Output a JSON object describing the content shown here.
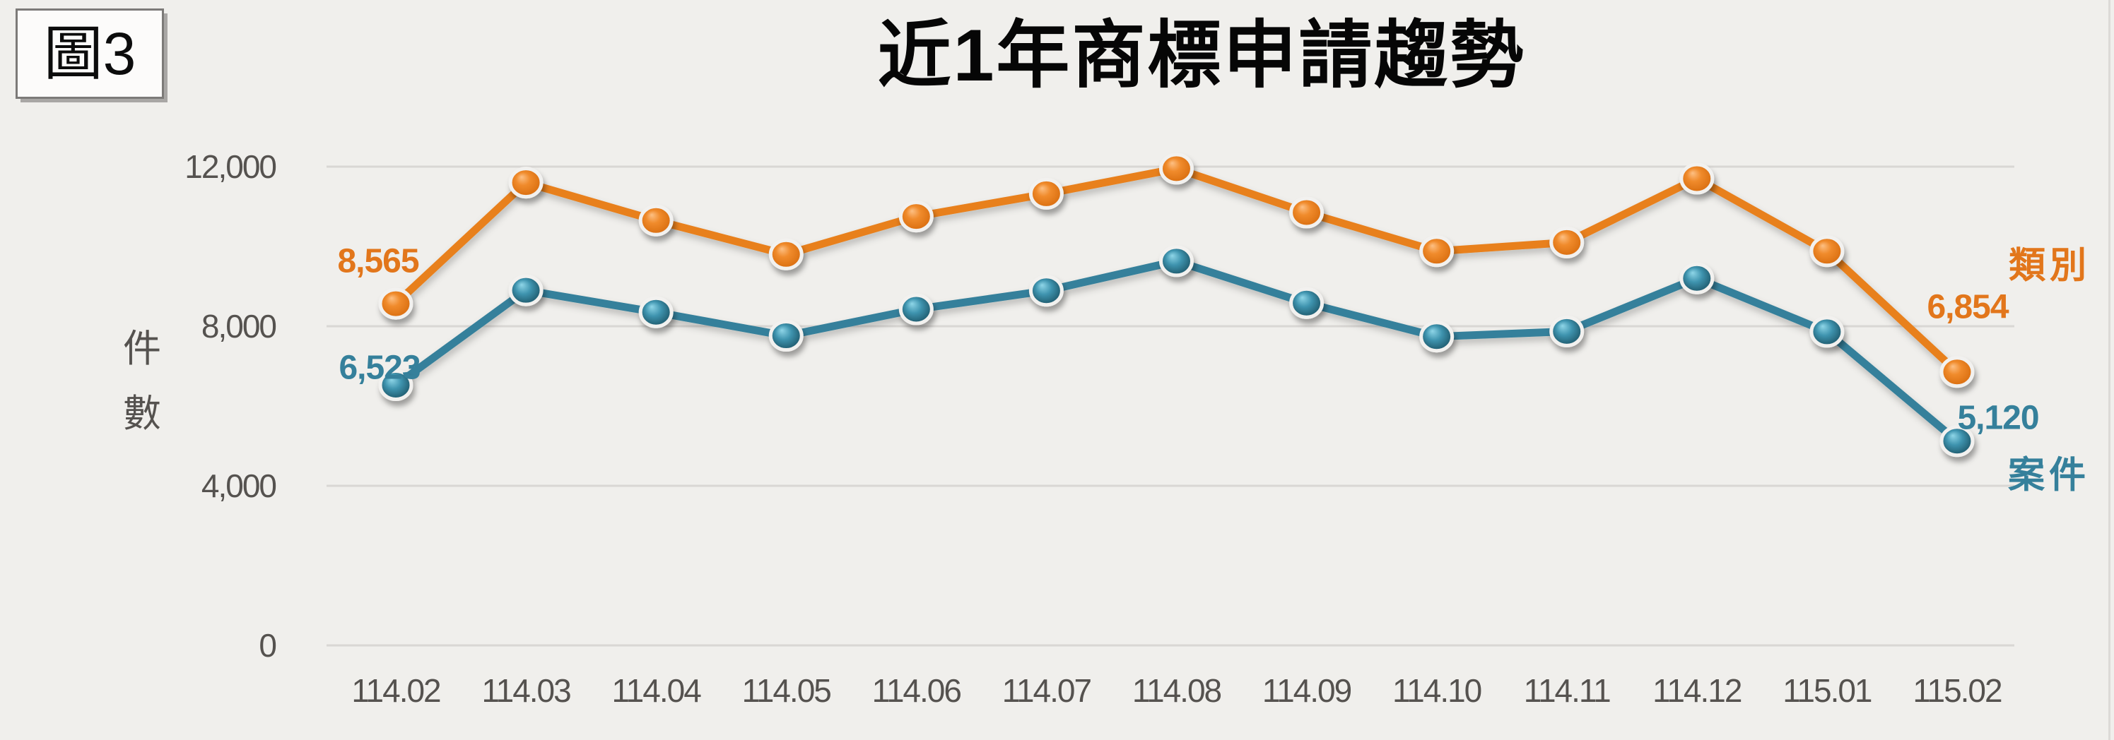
{
  "figure_label": "圖3",
  "title": "近1年商標申請趨勢",
  "chart_data": {
    "type": "line",
    "title": "近1年商標申請趨勢",
    "y_axis_title": "件數",
    "categories": [
      "114.02",
      "114.03",
      "114.04",
      "114.05",
      "114.06",
      "114.07",
      "114.08",
      "114.09",
      "114.10",
      "114.11",
      "114.12",
      "115.01",
      "115.02"
    ],
    "y_ticks": [
      0,
      4000,
      8000,
      12000
    ],
    "y_tick_labels": [
      "0",
      "4,000",
      "8,000",
      "12,000"
    ],
    "ylim": [
      0,
      12000
    ],
    "grid": true,
    "legend_position": "right",
    "series": [
      {
        "name": "類別",
        "semantic": "trademark-classes",
        "color": "#E8801F",
        "values": [
          8565,
          11600,
          10650,
          9800,
          10750,
          11320,
          11950,
          10850,
          9880,
          10100,
          11700,
          9880,
          6854
        ],
        "point_labels": {
          "first": "8,565",
          "last": "6,854"
        }
      },
      {
        "name": "案件",
        "semantic": "trademark-cases",
        "color": "#35809B",
        "values": [
          6523,
          8900,
          8350,
          7760,
          8425,
          8890,
          9630,
          8580,
          7740,
          7870,
          9200,
          7860,
          5120
        ],
        "point_labels": {
          "first": "6,523",
          "last": "5,120"
        }
      }
    ]
  },
  "colors": {
    "background": "#F0EFEC",
    "gridline": "#D9D7D4",
    "axis_text": "#55524F",
    "title_text": "#060606",
    "orange_line": "#E8801F",
    "orange_text": "#E2761B",
    "teal_line": "#35809B",
    "teal_text": "#35809B"
  }
}
